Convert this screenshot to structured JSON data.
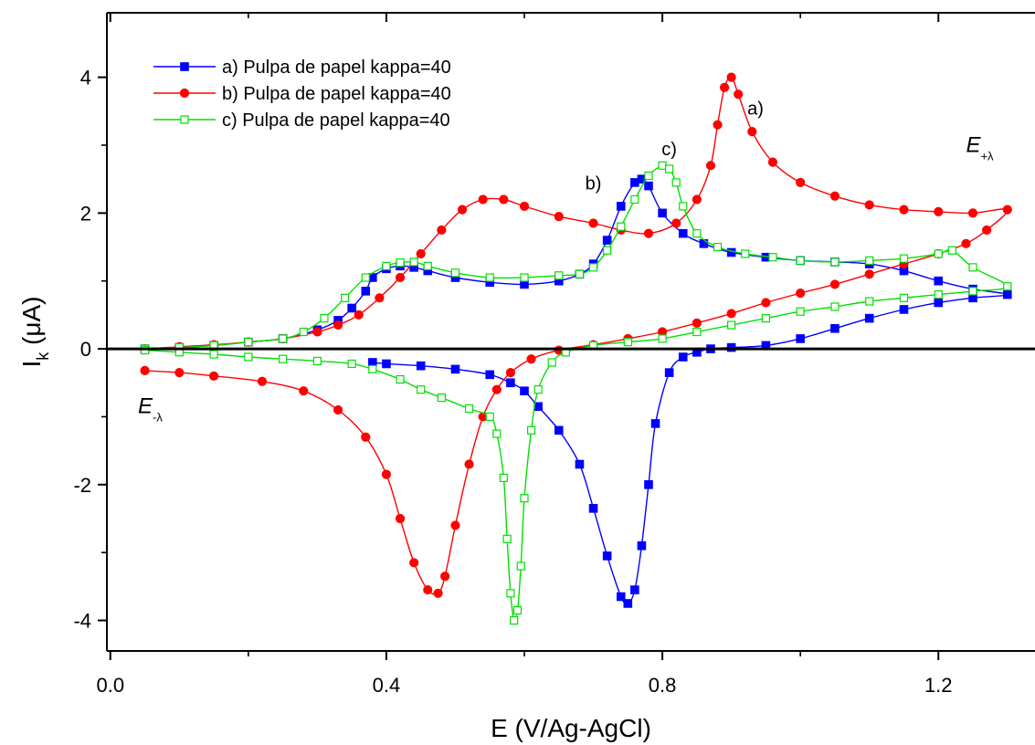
{
  "chart_data": {
    "type": "line",
    "xlabel": "E (V/Ag-AgCl)",
    "ylabel_main": "I",
    "ylabel_sub": "k",
    "ylabel_unit": " (μA)",
    "xlim": [
      -0.005,
      1.34
    ],
    "ylim": [
      -4.45,
      4.95
    ],
    "xticks": [
      0.0,
      0.4,
      0.8,
      1.2
    ],
    "xtick_labels": [
      "0.0",
      "0.4",
      "0.8",
      "1.2"
    ],
    "xminor": [
      0.2,
      0.6,
      1.0
    ],
    "yticks": [
      -4,
      -2,
      0,
      2,
      4
    ],
    "ytick_labels": [
      "-4",
      "-2",
      "0",
      "2",
      "4"
    ],
    "yminor": [
      -3,
      -1,
      1,
      3
    ],
    "zero_line": true,
    "legend_position": "top-left",
    "annotations": [
      {
        "text": "a)",
        "x": 0.935,
        "y": 3.45
      },
      {
        "text": "b)",
        "x": 0.7,
        "y": 2.35
      },
      {
        "text": "c)",
        "x": 0.81,
        "y": 2.85
      }
    ],
    "potential_labels": [
      {
        "main": "E",
        "sub": "+λ",
        "x": 1.24,
        "y": 2.9
      },
      {
        "main": "E",
        "sub": "-λ",
        "x": 0.04,
        "y": -0.95
      }
    ],
    "series": [
      {
        "name": "a) Pulpa de papel kappa=40",
        "color": "#0000ff",
        "marker": "square-filled",
        "x": [
          0.05,
          0.1,
          0.15,
          0.2,
          0.25,
          0.3,
          0.33,
          0.35,
          0.37,
          0.38,
          0.4,
          0.42,
          0.44,
          0.46,
          0.5,
          0.55,
          0.6,
          0.65,
          0.68,
          0.7,
          0.72,
          0.74,
          0.76,
          0.77,
          0.78,
          0.8,
          0.83,
          0.86,
          0.9,
          0.95,
          1.0,
          1.05,
          1.1,
          1.15,
          1.2,
          1.25,
          1.3,
          1.25,
          1.2,
          1.15,
          1.1,
          1.05,
          1.0,
          0.95,
          0.9,
          0.87,
          0.85,
          0.83,
          0.81,
          0.79,
          0.78,
          0.77,
          0.76,
          0.75,
          0.74,
          0.72,
          0.7,
          0.68,
          0.65,
          0.62,
          0.6,
          0.58,
          0.55,
          0.5,
          0.45,
          0.4,
          0.38
        ],
        "y": [
          0.0,
          0.02,
          0.05,
          0.1,
          0.15,
          0.28,
          0.42,
          0.6,
          0.85,
          1.05,
          1.18,
          1.22,
          1.2,
          1.15,
          1.05,
          0.98,
          0.95,
          1.0,
          1.1,
          1.25,
          1.6,
          2.1,
          2.45,
          2.5,
          2.4,
          2.0,
          1.7,
          1.55,
          1.42,
          1.35,
          1.3,
          1.28,
          1.25,
          1.15,
          1.0,
          0.88,
          0.8,
          0.75,
          0.68,
          0.58,
          0.45,
          0.3,
          0.15,
          0.05,
          0.02,
          0.0,
          -0.05,
          -0.12,
          -0.35,
          -1.1,
          -2.0,
          -2.9,
          -3.55,
          -3.75,
          -3.65,
          -3.05,
          -2.35,
          -1.7,
          -1.2,
          -0.85,
          -0.62,
          -0.5,
          -0.38,
          -0.3,
          -0.25,
          -0.22,
          -0.2
        ]
      },
      {
        "name": "b) Pulpa de papel kappa=40",
        "color": "#ff0000",
        "marker": "circle-filled",
        "x": [
          0.05,
          0.1,
          0.15,
          0.2,
          0.25,
          0.3,
          0.33,
          0.36,
          0.39,
          0.42,
          0.45,
          0.48,
          0.51,
          0.54,
          0.57,
          0.6,
          0.65,
          0.7,
          0.74,
          0.78,
          0.82,
          0.85,
          0.87,
          0.88,
          0.89,
          0.9,
          0.91,
          0.93,
          0.96,
          1.0,
          1.05,
          1.1,
          1.15,
          1.2,
          1.25,
          1.3,
          1.27,
          1.24,
          1.2,
          1.15,
          1.1,
          1.05,
          1.0,
          0.95,
          0.9,
          0.85,
          0.8,
          0.75,
          0.7,
          0.65,
          0.61,
          0.58,
          0.56,
          0.54,
          0.52,
          0.5,
          0.485,
          0.475,
          0.46,
          0.44,
          0.42,
          0.4,
          0.37,
          0.33,
          0.28,
          0.22,
          0.15,
          0.1,
          0.05
        ],
        "y": [
          0.0,
          0.03,
          0.06,
          0.1,
          0.15,
          0.25,
          0.35,
          0.5,
          0.75,
          1.05,
          1.4,
          1.75,
          2.05,
          2.2,
          2.2,
          2.1,
          1.95,
          1.85,
          1.75,
          1.7,
          1.85,
          2.2,
          2.7,
          3.3,
          3.85,
          4.0,
          3.75,
          3.2,
          2.75,
          2.45,
          2.25,
          2.12,
          2.05,
          2.02,
          2.0,
          2.05,
          1.75,
          1.55,
          1.4,
          1.25,
          1.1,
          0.95,
          0.82,
          0.68,
          0.52,
          0.38,
          0.25,
          0.15,
          0.06,
          -0.02,
          -0.15,
          -0.35,
          -0.6,
          -1.0,
          -1.7,
          -2.6,
          -3.35,
          -3.6,
          -3.55,
          -3.15,
          -2.5,
          -1.85,
          -1.3,
          -0.9,
          -0.62,
          -0.48,
          -0.4,
          -0.35,
          -0.32
        ]
      },
      {
        "name": "c) Pulpa de papel kappa=40",
        "color": "#00e000",
        "marker": "square-open",
        "x": [
          0.05,
          0.1,
          0.15,
          0.2,
          0.25,
          0.28,
          0.31,
          0.34,
          0.37,
          0.4,
          0.42,
          0.44,
          0.46,
          0.5,
          0.55,
          0.6,
          0.65,
          0.68,
          0.7,
          0.72,
          0.74,
          0.76,
          0.78,
          0.8,
          0.81,
          0.82,
          0.83,
          0.85,
          0.88,
          0.92,
          0.96,
          1.0,
          1.05,
          1.1,
          1.15,
          1.2,
          1.22,
          1.25,
          1.3,
          1.25,
          1.2,
          1.15,
          1.1,
          1.05,
          1.0,
          0.95,
          0.9,
          0.85,
          0.8,
          0.75,
          0.7,
          0.66,
          0.64,
          0.62,
          0.61,
          0.6,
          0.595,
          0.59,
          0.585,
          0.58,
          0.575,
          0.57,
          0.56,
          0.55,
          0.52,
          0.48,
          0.45,
          0.42,
          0.38,
          0.35,
          0.3,
          0.25,
          0.2,
          0.15,
          0.1,
          0.05
        ],
        "y": [
          0.0,
          0.02,
          0.05,
          0.1,
          0.15,
          0.25,
          0.45,
          0.75,
          1.05,
          1.22,
          1.27,
          1.28,
          1.22,
          1.12,
          1.05,
          1.05,
          1.08,
          1.1,
          1.2,
          1.45,
          1.8,
          2.2,
          2.55,
          2.7,
          2.65,
          2.45,
          2.1,
          1.7,
          1.5,
          1.4,
          1.35,
          1.3,
          1.28,
          1.3,
          1.33,
          1.4,
          1.45,
          1.2,
          0.92,
          0.85,
          0.8,
          0.75,
          0.7,
          0.62,
          0.55,
          0.45,
          0.35,
          0.25,
          0.15,
          0.1,
          0.05,
          -0.05,
          -0.2,
          -0.6,
          -1.2,
          -2.2,
          -3.2,
          -3.85,
          -4.0,
          -3.6,
          -2.8,
          -1.9,
          -1.25,
          -1.0,
          -0.88,
          -0.72,
          -0.6,
          -0.45,
          -0.3,
          -0.22,
          -0.18,
          -0.15,
          -0.12,
          -0.08,
          -0.05,
          -0.02
        ]
      }
    ]
  }
}
